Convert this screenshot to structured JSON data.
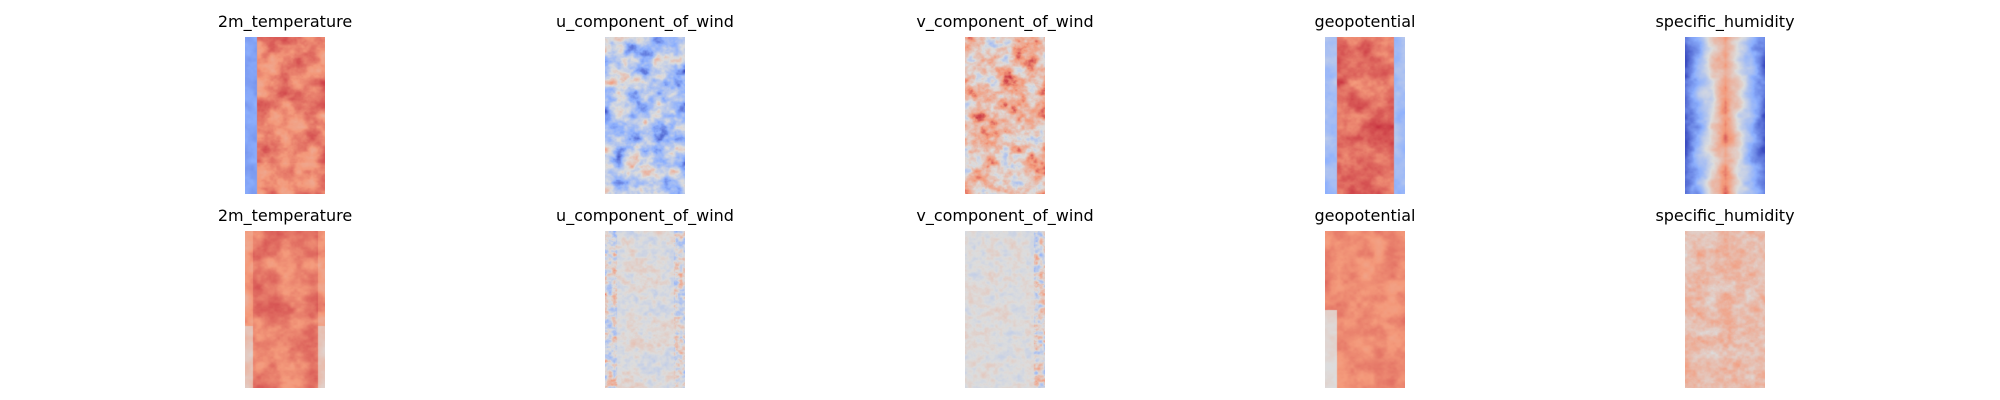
{
  "chart_data": {
    "type": "heatmap",
    "colormap": "coolwarm",
    "colormap_endpoints": {
      "low": "#3b4cc0",
      "mid": "#dddddd",
      "high": "#b40426"
    },
    "axes_visible": false,
    "rows": [
      {
        "panels": [
          {
            "title": "2m_temperature"
          },
          {
            "title": "u_component_of_wind"
          },
          {
            "title": "v_component_of_wind"
          },
          {
            "title": "geopotential"
          },
          {
            "title": "specific_humidity"
          }
        ]
      },
      {
        "panels": [
          {
            "title": "2m_temperature"
          },
          {
            "title": "u_component_of_wind"
          },
          {
            "title": "v_component_of_wind"
          },
          {
            "title": "geopotential"
          },
          {
            "title": "specific_humidity"
          }
        ]
      }
    ]
  }
}
